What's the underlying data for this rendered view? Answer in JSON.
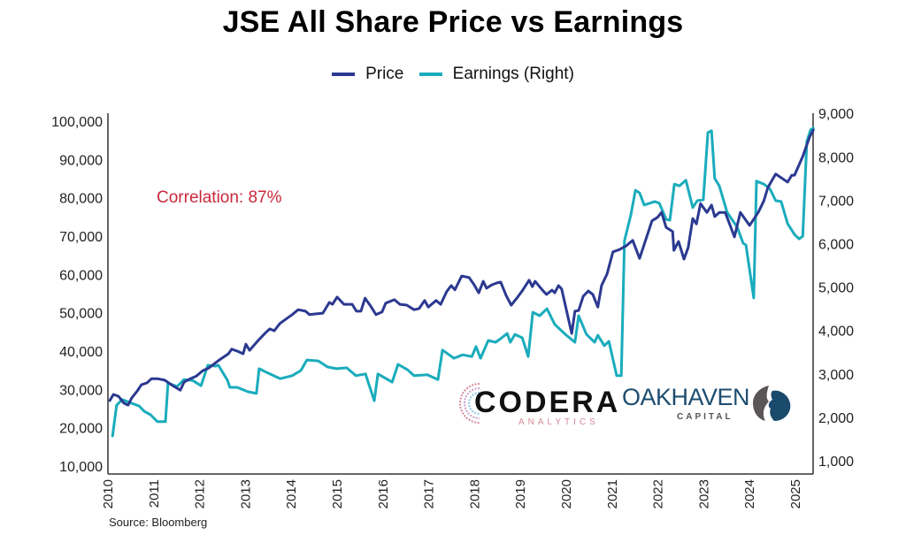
{
  "chart_data": {
    "type": "line",
    "title": "JSE All Share Price vs Earnings",
    "xlabel": "",
    "ylabel": "",
    "y2label": "",
    "x_ticks": [
      "2010",
      "2011",
      "2012",
      "2013",
      "2014",
      "2015",
      "2016",
      "2017",
      "2018",
      "2019",
      "2020",
      "2021",
      "2022",
      "2023",
      "2024",
      "2025"
    ],
    "xlim": [
      2010,
      2025.4
    ],
    "ylim": [
      8000,
      102000
    ],
    "y_ticks": [
      10000,
      20000,
      30000,
      40000,
      50000,
      60000,
      70000,
      80000,
      90000,
      100000
    ],
    "y_tick_labels": [
      "10,000",
      "20,000",
      "30,000",
      "40,000",
      "50,000",
      "60,000",
      "70,000",
      "80,000",
      "90,000",
      "100,000"
    ],
    "y2lim": [
      700,
      9200
    ],
    "y2_ticks": [
      1000,
      2000,
      3000,
      4000,
      5000,
      6000,
      7000,
      8000,
      9000
    ],
    "y2_tick_labels": [
      "1,000",
      "2,000",
      "3,000",
      "4,000",
      "5,000",
      "6,000",
      "7,000",
      "8,000",
      "9,000"
    ],
    "grid": false,
    "legend_position": "top-center",
    "annotations": [
      "Correlation: 87%"
    ],
    "series": [
      {
        "name": "Price",
        "axis": "left",
        "color": "#2b3990",
        "points": [
          [
            2010.04,
            27100
          ],
          [
            2010.12,
            28700
          ],
          [
            2010.23,
            28200
          ],
          [
            2010.35,
            26400
          ],
          [
            2010.44,
            25900
          ],
          [
            2010.52,
            27800
          ],
          [
            2010.64,
            29600
          ],
          [
            2010.73,
            31200
          ],
          [
            2010.85,
            31700
          ],
          [
            2010.95,
            32800
          ],
          [
            2011.08,
            32800
          ],
          [
            2011.24,
            32400
          ],
          [
            2011.41,
            31000
          ],
          [
            2011.58,
            29800
          ],
          [
            2011.66,
            31900
          ],
          [
            2011.8,
            32800
          ],
          [
            2011.93,
            33500
          ],
          [
            2012.07,
            34900
          ],
          [
            2012.2,
            35600
          ],
          [
            2012.41,
            37500
          ],
          [
            2012.63,
            39300
          ],
          [
            2012.7,
            40500
          ],
          [
            2012.82,
            40000
          ],
          [
            2012.95,
            39300
          ],
          [
            2013.01,
            41800
          ],
          [
            2013.09,
            40200
          ],
          [
            2013.28,
            42800
          ],
          [
            2013.44,
            44800
          ],
          [
            2013.53,
            45800
          ],
          [
            2013.63,
            45300
          ],
          [
            2013.75,
            47200
          ],
          [
            2013.82,
            47800
          ],
          [
            2014.02,
            49500
          ],
          [
            2014.15,
            50800
          ],
          [
            2014.31,
            50400
          ],
          [
            2014.4,
            49500
          ],
          [
            2014.52,
            49700
          ],
          [
            2014.69,
            49900
          ],
          [
            2014.83,
            52700
          ],
          [
            2014.9,
            52200
          ],
          [
            2015.0,
            54100
          ],
          [
            2015.15,
            52200
          ],
          [
            2015.33,
            52200
          ],
          [
            2015.42,
            50400
          ],
          [
            2015.52,
            50400
          ],
          [
            2015.61,
            53800
          ],
          [
            2015.73,
            51800
          ],
          [
            2015.85,
            49500
          ],
          [
            2015.98,
            50200
          ],
          [
            2016.06,
            52500
          ],
          [
            2016.25,
            53400
          ],
          [
            2016.37,
            52200
          ],
          [
            2016.52,
            52000
          ],
          [
            2016.68,
            50800
          ],
          [
            2016.79,
            51100
          ],
          [
            2016.91,
            53200
          ],
          [
            2016.99,
            51500
          ],
          [
            2017.16,
            53200
          ],
          [
            2017.26,
            52200
          ],
          [
            2017.39,
            55500
          ],
          [
            2017.49,
            57100
          ],
          [
            2017.57,
            56000
          ],
          [
            2017.72,
            59600
          ],
          [
            2017.88,
            59200
          ],
          [
            2017.99,
            57300
          ],
          [
            2018.09,
            55200
          ],
          [
            2018.19,
            58200
          ],
          [
            2018.26,
            56400
          ],
          [
            2018.38,
            57300
          ],
          [
            2018.49,
            57800
          ],
          [
            2018.57,
            58000
          ],
          [
            2018.69,
            54500
          ],
          [
            2018.8,
            52000
          ],
          [
            2018.94,
            54100
          ],
          [
            2019.05,
            55900
          ],
          [
            2019.19,
            58500
          ],
          [
            2019.26,
            56800
          ],
          [
            2019.32,
            58200
          ],
          [
            2019.48,
            55900
          ],
          [
            2019.57,
            54800
          ],
          [
            2019.69,
            55900
          ],
          [
            2019.75,
            55200
          ],
          [
            2019.83,
            57100
          ],
          [
            2019.9,
            56200
          ],
          [
            2020.12,
            44600
          ],
          [
            2020.19,
            50400
          ],
          [
            2020.27,
            50600
          ],
          [
            2020.37,
            54300
          ],
          [
            2020.48,
            55700
          ],
          [
            2020.58,
            54800
          ],
          [
            2020.69,
            51500
          ],
          [
            2020.77,
            57100
          ],
          [
            2020.89,
            60100
          ],
          [
            2021.02,
            65900
          ],
          [
            2021.16,
            66500
          ],
          [
            2021.31,
            67500
          ],
          [
            2021.45,
            68900
          ],
          [
            2021.6,
            64200
          ],
          [
            2021.76,
            70000
          ],
          [
            2021.87,
            74000
          ],
          [
            2021.99,
            74900
          ],
          [
            2022.08,
            76200
          ],
          [
            2022.18,
            72300
          ],
          [
            2022.32,
            71200
          ],
          [
            2022.35,
            66300
          ],
          [
            2022.45,
            68600
          ],
          [
            2022.57,
            64000
          ],
          [
            2022.66,
            67000
          ],
          [
            2022.76,
            74600
          ],
          [
            2022.84,
            73200
          ],
          [
            2022.93,
            78500
          ],
          [
            2023.07,
            76200
          ],
          [
            2023.17,
            78100
          ],
          [
            2023.24,
            75100
          ],
          [
            2023.34,
            76200
          ],
          [
            2023.47,
            76200
          ],
          [
            2023.67,
            69800
          ],
          [
            2023.8,
            76200
          ],
          [
            2024.0,
            72800
          ],
          [
            2024.19,
            76200
          ],
          [
            2024.31,
            79200
          ],
          [
            2024.4,
            82700
          ],
          [
            2024.57,
            86200
          ],
          [
            2024.83,
            84100
          ],
          [
            2024.92,
            85900
          ],
          [
            2024.98,
            85900
          ],
          [
            2025.16,
            90800
          ],
          [
            2025.31,
            95900
          ],
          [
            2025.39,
            97700
          ]
        ]
      },
      {
        "name": "Earnings (Right)",
        "axis": "right",
        "color": "#1aacbc",
        "points": [
          [
            2010.1,
            1570
          ],
          [
            2010.19,
            2280
          ],
          [
            2010.31,
            2410
          ],
          [
            2010.48,
            2340
          ],
          [
            2010.68,
            2260
          ],
          [
            2010.79,
            2140
          ],
          [
            2010.93,
            2060
          ],
          [
            2011.08,
            1900
          ],
          [
            2011.255,
            1900
          ],
          [
            2011.31,
            2790
          ],
          [
            2011.51,
            2710
          ],
          [
            2011.66,
            2870
          ],
          [
            2011.85,
            2850
          ],
          [
            2012.03,
            2730
          ],
          [
            2012.18,
            3200
          ],
          [
            2012.34,
            3180
          ],
          [
            2012.41,
            3200
          ],
          [
            2012.61,
            2850
          ],
          [
            2012.66,
            2690
          ],
          [
            2012.82,
            2690
          ],
          [
            2013.05,
            2590
          ],
          [
            2013.24,
            2550
          ],
          [
            2013.3,
            3120
          ],
          [
            2013.49,
            3020
          ],
          [
            2013.76,
            2890
          ],
          [
            2014.02,
            2960
          ],
          [
            2014.21,
            3080
          ],
          [
            2014.34,
            3320
          ],
          [
            2014.59,
            3300
          ],
          [
            2014.79,
            3160
          ],
          [
            2014.98,
            3120
          ],
          [
            2015.21,
            3140
          ],
          [
            2015.41,
            2960
          ],
          [
            2015.62,
            3000
          ],
          [
            2015.81,
            2380
          ],
          [
            2015.89,
            3000
          ],
          [
            2016.2,
            2810
          ],
          [
            2016.33,
            3220
          ],
          [
            2016.53,
            3100
          ],
          [
            2016.68,
            2960
          ],
          [
            2016.97,
            2980
          ],
          [
            2017.2,
            2870
          ],
          [
            2017.3,
            3550
          ],
          [
            2017.55,
            3360
          ],
          [
            2017.74,
            3440
          ],
          [
            2017.94,
            3400
          ],
          [
            2018.03,
            3630
          ],
          [
            2018.13,
            3360
          ],
          [
            2018.3,
            3770
          ],
          [
            2018.46,
            3730
          ],
          [
            2018.59,
            3830
          ],
          [
            2018.71,
            3930
          ],
          [
            2018.78,
            3730
          ],
          [
            2018.88,
            3910
          ],
          [
            2019.04,
            3830
          ],
          [
            2019.17,
            3400
          ],
          [
            2019.27,
            4420
          ],
          [
            2019.42,
            4340
          ],
          [
            2019.58,
            4500
          ],
          [
            2019.75,
            4140
          ],
          [
            2019.98,
            3910
          ],
          [
            2020.19,
            3730
          ],
          [
            2020.27,
            4340
          ],
          [
            2020.44,
            3910
          ],
          [
            2020.62,
            3730
          ],
          [
            2020.69,
            3890
          ],
          [
            2020.83,
            3650
          ],
          [
            2020.93,
            3750
          ],
          [
            2021.1,
            2960
          ],
          [
            2021.2,
            2960
          ],
          [
            2021.27,
            6070
          ],
          [
            2021.41,
            6660
          ],
          [
            2021.51,
            7230
          ],
          [
            2021.6,
            7170
          ],
          [
            2021.7,
            6890
          ],
          [
            2021.93,
            6970
          ],
          [
            2022.03,
            6930
          ],
          [
            2022.18,
            6560
          ],
          [
            2022.26,
            6540
          ],
          [
            2022.36,
            7370
          ],
          [
            2022.47,
            7330
          ],
          [
            2022.61,
            7460
          ],
          [
            2022.76,
            6830
          ],
          [
            2022.86,
            6990
          ],
          [
            2022.99,
            7010
          ],
          [
            2023.09,
            8560
          ],
          [
            2023.17,
            8600
          ],
          [
            2023.24,
            7500
          ],
          [
            2023.34,
            7330
          ],
          [
            2023.51,
            6720
          ],
          [
            2023.73,
            6380
          ],
          [
            2023.86,
            6010
          ],
          [
            2023.92,
            5970
          ],
          [
            2024.09,
            4750
          ],
          [
            2024.15,
            7440
          ],
          [
            2024.31,
            7370
          ],
          [
            2024.44,
            7270
          ],
          [
            2024.57,
            6990
          ],
          [
            2024.69,
            6970
          ],
          [
            2024.83,
            6460
          ],
          [
            2024.98,
            6210
          ],
          [
            2025.08,
            6110
          ],
          [
            2025.16,
            6170
          ],
          [
            2025.25,
            8350
          ],
          [
            2025.33,
            8620
          ],
          [
            2025.39,
            8660
          ]
        ]
      }
    ]
  },
  "header": {
    "title": "JSE All Share Price vs Earnings",
    "legend": [
      {
        "label": "Price",
        "color": "#2b3990"
      },
      {
        "label": "Earnings (Right)",
        "color": "#1aacbc"
      }
    ]
  },
  "annotation": {
    "correlation": "Correlation: 87%",
    "color": "#c8283c"
  },
  "footer": {
    "source": "Source: Bloomberg"
  },
  "logos": {
    "codera": {
      "name": "CODERA",
      "tagline": "ANALYTICS"
    },
    "oakhaven": {
      "name_part1": "OAK",
      "name_part2": "HAVEN",
      "tagline": "CAPITAL"
    }
  }
}
